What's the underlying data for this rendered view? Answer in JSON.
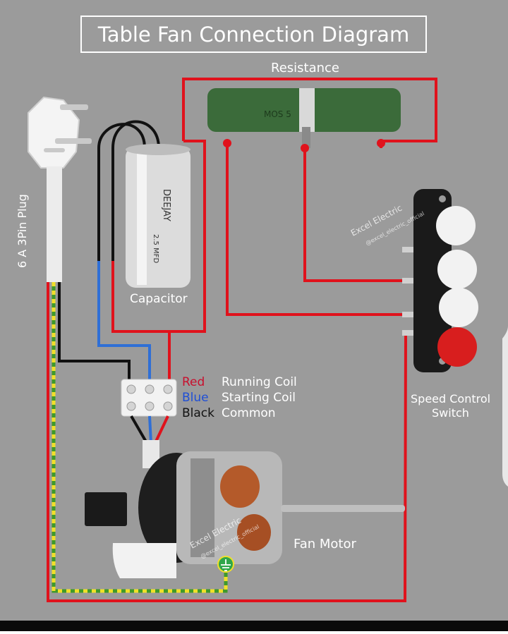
{
  "title": "Table Fan Connection Diagram",
  "labels": {
    "resistance": "Resistance",
    "plug": "6 A 3Pin Plug",
    "capacitor": "Capacitor",
    "speed_switch_line1": "Speed Control",
    "speed_switch_line2": "Switch",
    "fan_motor": "Fan Motor"
  },
  "capacitor_markings": {
    "brand": "DEEJAY",
    "rating": "2.5 MFD"
  },
  "resistor_marking": "MOS 5",
  "legend": [
    {
      "color_name": "Red",
      "meaning": "Running Coil",
      "color": "#c8102e"
    },
    {
      "color_name": "Blue",
      "meaning": "Starting Coil",
      "color": "#1f4fd6"
    },
    {
      "color_name": "Black",
      "meaning": "Common",
      "color": "#111111"
    }
  ],
  "watermark": {
    "text": "Excel Electric",
    "handle": "@excel_electric_official"
  },
  "colors": {
    "background": "#9a9a9a",
    "wire_red": "#e0121c",
    "wire_blue": "#2f6fd6",
    "wire_black": "#111111",
    "wire_earth": "#3f9a2a",
    "earth_stripe": "#f0e02a"
  }
}
